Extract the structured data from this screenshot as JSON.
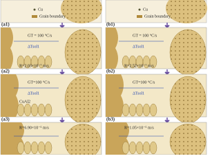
{
  "left": {
    "legend": {
      "cu": "Cu",
      "boundary": "Grain boundary"
    },
    "panels": [
      {
        "label": "(a1)",
        "gradient": "GT = 100 °C/s",
        "undercooling": "ΔTsol1",
        "rate": "R=2.03×10⁻⁷ m/s"
      },
      {
        "label": "(a2)",
        "gradient": "GT=100 °C/s",
        "undercooling": "ΔTsol1",
        "phase": "CuAl2"
      },
      {
        "label": "(a3)",
        "rate": "R=6.90×10⁻⁵ m/s"
      }
    ]
  },
  "right": {
    "legend": {
      "cu": "Cu",
      "boundary": "Grain boundary"
    },
    "panels": [
      {
        "label": "(b1)",
        "gradient": "GT = 100 °C/s",
        "undercooling": "ΔTsol1",
        "rate": "R=2.52×10⁻⁷ m/s"
      },
      {
        "label": "(b2)",
        "gradient": "GT=100 °C/s",
        "undercooling": "ΔTsol1"
      },
      {
        "label": "(b3)",
        "rate": "R=1.05×10⁻⁵ m/s"
      }
    ]
  }
}
